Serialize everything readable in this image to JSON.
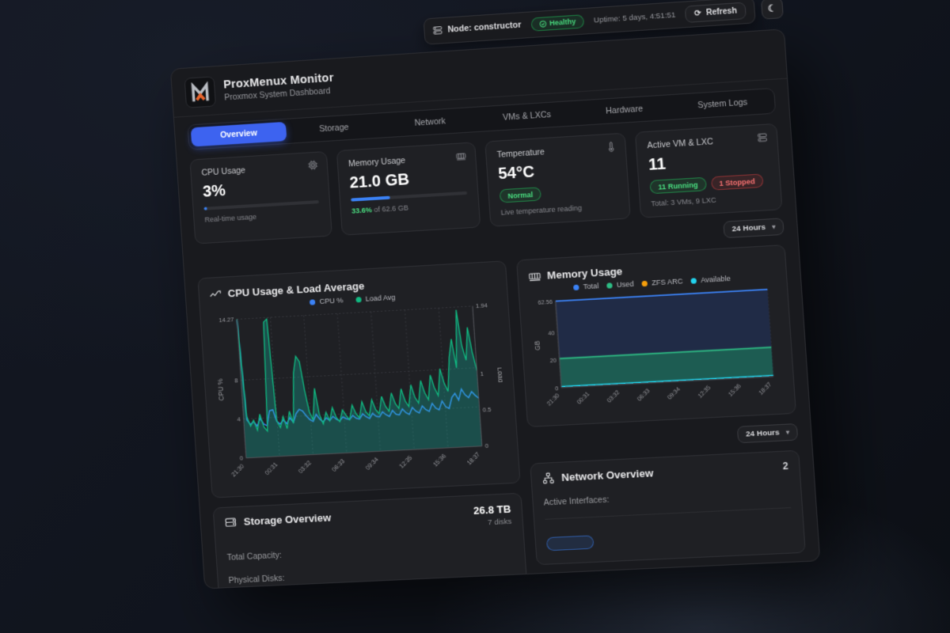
{
  "topbar": {
    "node": "Node: constructor",
    "health": "Healthy",
    "uptime": "Uptime: 5 days, 4:51:51",
    "refresh": "Refresh",
    "moon": "☾"
  },
  "header": {
    "title": "ProxMenux Monitor",
    "subtitle": "Proxmox System Dashboard"
  },
  "tabs": {
    "items": [
      "Overview",
      "Storage",
      "Network",
      "VMs & LXCs",
      "Hardware",
      "System Logs"
    ],
    "active": "Overview"
  },
  "stats": {
    "cpu": {
      "title": "CPU Usage",
      "value": "3%",
      "percent": 3,
      "sub": "Real-time usage"
    },
    "memory": {
      "title": "Memory Usage",
      "value": "21.0 GB",
      "percent": 33.6,
      "highlight": "33.6%",
      "sub_rest": " of 62.6 GB"
    },
    "temp": {
      "title": "Temperature",
      "value": "54°C",
      "badge": "Normal",
      "sub": "Live temperature reading"
    },
    "vms": {
      "title": "Active VM & LXC",
      "value": "11",
      "running": "11 Running",
      "stopped": "1 Stopped",
      "sub": "Total: 3 VMs, 9 LXC"
    }
  },
  "range_selector": {
    "label": "24 Hours"
  },
  "range_selector2": {
    "label": "24 Hours"
  },
  "storage": {
    "title": "Storage Overview",
    "stat_value": "26.8 TB",
    "stat_sub": "7 disks",
    "rows": [
      "Total Capacity:",
      "Physical Disks:"
    ]
  },
  "network": {
    "title": "Network Overview",
    "count": "2",
    "label": "Active Interfaces:",
    "interface_badge": ""
  },
  "chart_data": [
    {
      "type": "line",
      "title": "CPU Usage & Load Average",
      "x_ticks": [
        "21:30",
        "00:31",
        "03:32",
        "06:33",
        "09:34",
        "12:35",
        "15:36",
        "18:37"
      ],
      "ylabel": "CPU %",
      "ylim": [
        0,
        14.27
      ],
      "yticks": [
        0,
        4,
        8,
        14.27
      ],
      "right_ylabel": "Load",
      "right_ylim": [
        0,
        1.94
      ],
      "right_yticks": [
        0,
        0.5,
        1,
        1.94
      ],
      "grid": true,
      "legend_position": "top",
      "series": [
        {
          "name": "CPU %",
          "color": "#3b82f6",
          "axis": "left",
          "width": 1.6,
          "values": [
            14.2,
            3.9,
            3.4,
            3.7,
            3.2,
            4.0,
            3.4,
            3.2,
            4.7,
            4.8,
            3.6,
            3.3,
            3.7,
            3.3,
            3.9,
            3.4,
            4.3,
            4.7,
            4.5,
            4.0,
            3.6,
            3.4,
            4.1,
            3.6,
            3.3,
            3.7,
            3.4,
            3.8,
            3.5,
            3.3,
            3.7,
            3.5,
            3.4,
            3.8,
            3.5,
            3.4,
            3.9,
            3.6,
            3.4,
            3.9,
            3.6,
            3.5,
            4.0,
            3.7,
            3.5,
            4.1,
            3.7,
            3.6,
            4.2,
            3.8,
            3.6,
            4.3,
            3.9,
            3.7,
            4.4,
            4.0,
            3.8,
            4.6,
            4.1,
            3.9,
            4.8,
            4.2,
            4.0,
            5.1,
            5.5,
            4.8,
            5.9,
            5.3,
            5.0,
            5.6,
            5.2,
            4.9
          ]
        },
        {
          "name": "Load Avg",
          "color": "#10b981",
          "axis": "right",
          "width": 1.4,
          "fill": "rgba(20,184,166,0.30)",
          "values": [
            1.94,
            0.58,
            0.44,
            0.52,
            0.38,
            0.6,
            0.42,
            0.36,
            1.88,
            1.92,
            0.5,
            0.4,
            0.55,
            0.38,
            0.62,
            0.45,
            1.15,
            1.38,
            1.3,
            0.9,
            0.6,
            0.48,
            0.92,
            0.55,
            0.42,
            0.58,
            0.46,
            0.64,
            0.5,
            0.44,
            0.6,
            0.52,
            0.46,
            0.66,
            0.54,
            0.48,
            0.7,
            0.56,
            0.5,
            0.72,
            0.58,
            0.52,
            0.76,
            0.62,
            0.55,
            0.8,
            0.65,
            0.58,
            0.85,
            0.68,
            0.6,
            0.9,
            0.72,
            0.64,
            0.95,
            0.78,
            0.68,
            1.02,
            0.84,
            0.73,
            1.1,
            0.9,
            0.78,
            1.25,
            1.5,
            1.1,
            1.9,
            1.4,
            1.2,
            1.65,
            1.3,
            1.05
          ]
        }
      ]
    },
    {
      "type": "area",
      "title": "Memory Usage",
      "x_ticks": [
        "21:30",
        "00:31",
        "03:32",
        "06:33",
        "09:34",
        "12:35",
        "15:36",
        "18:37"
      ],
      "ylabel": "GB",
      "ylim": [
        0,
        62.56
      ],
      "yticks": [
        0,
        20,
        40,
        62.56
      ],
      "grid": true,
      "legend_position": "top",
      "series": [
        {
          "name": "Total",
          "color": "#3b82f6",
          "axis": "left",
          "width": 2,
          "fill": "#202b46",
          "values": 62.56
        },
        {
          "name": "Used",
          "color": "#2ebd85",
          "axis": "left",
          "width": 2,
          "fill": "#1d5c52",
          "values": 21.0
        },
        {
          "name": "ZFS ARC",
          "color": "#f59e0b",
          "axis": "left",
          "width": 1.4,
          "values": null
        },
        {
          "name": "Available",
          "color": "#22d3ee",
          "axis": "left",
          "width": 1.5,
          "values": 0.8
        }
      ]
    }
  ],
  "colors": {
    "accent": "#3d63f0",
    "blue": "#3b82f6",
    "green": "#22c55e",
    "teal": "#10b981",
    "cyan": "#22d3ee",
    "orange": "#f59e0b",
    "red": "#ef4444"
  }
}
